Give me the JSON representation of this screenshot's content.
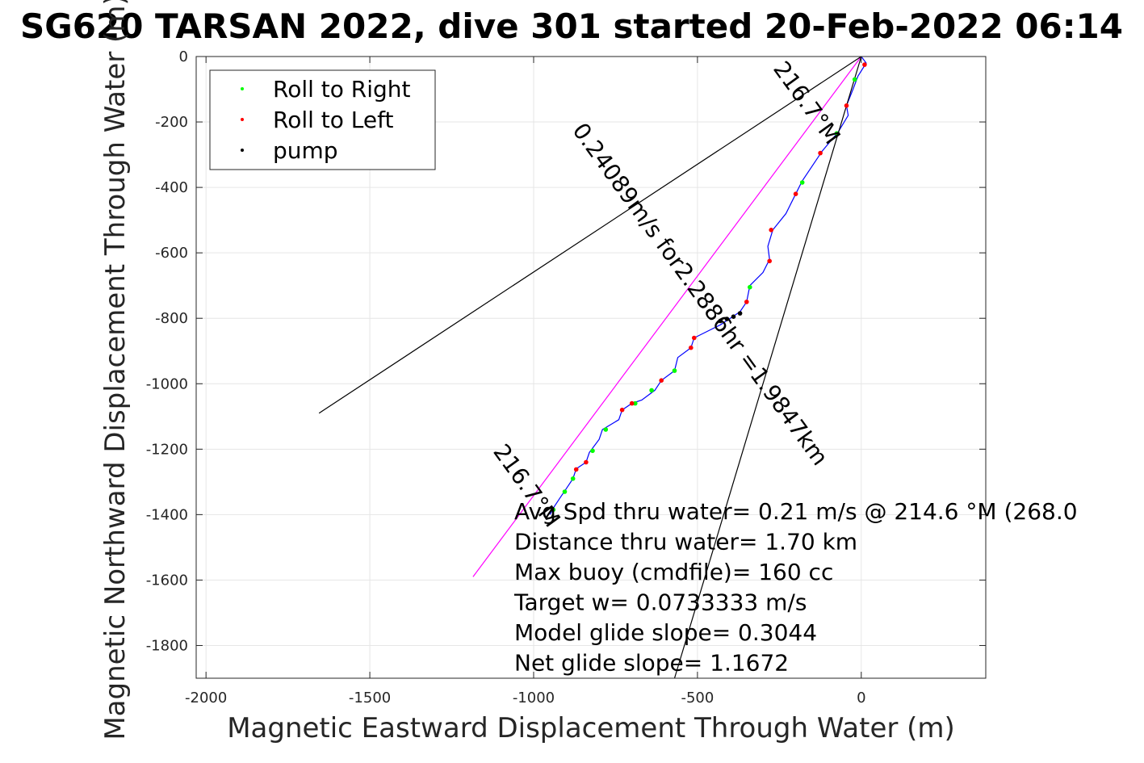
{
  "chart_data": {
    "type": "line",
    "title": "SG620 TARSAN 2022, dive 301 started 20-Feb-2022 06:14",
    "xlabel": "Magnetic Eastward Displacement Through Water (m)",
    "ylabel": "Magnetic Northward Displacement Through Water (m)",
    "xlim": [
      -2030,
      380
    ],
    "ylim": [
      -1900,
      0
    ],
    "xticks": [
      -2000,
      -1500,
      -1000,
      -500,
      0
    ],
    "yticks": [
      0,
      -200,
      -400,
      -600,
      -800,
      -1000,
      -1200,
      -1400,
      -1600,
      -1800
    ],
    "grid": true,
    "legend_position": "top-left",
    "legend": [
      {
        "label": "Roll to Right",
        "color": "#00ff00"
      },
      {
        "label": "Roll to Left",
        "color": "#ff0000"
      },
      {
        "label": "pump",
        "color": "#000000"
      }
    ],
    "series": [
      {
        "name": "track",
        "color": "#0000ff",
        "points": [
          [
            0,
            0
          ],
          [
            15,
            -20
          ],
          [
            -10,
            -60
          ],
          [
            -25,
            -100
          ],
          [
            -45,
            -150
          ],
          [
            -40,
            -180
          ],
          [
            -70,
            -230
          ],
          [
            -120,
            -290
          ],
          [
            -140,
            -320
          ],
          [
            -180,
            -380
          ],
          [
            -200,
            -420
          ],
          [
            -230,
            -480
          ],
          [
            -270,
            -530
          ],
          [
            -285,
            -580
          ],
          [
            -280,
            -620
          ],
          [
            -300,
            -660
          ],
          [
            -340,
            -700
          ],
          [
            -350,
            -750
          ],
          [
            -370,
            -780
          ],
          [
            -400,
            -800
          ],
          [
            -430,
            -820
          ],
          [
            -470,
            -840
          ],
          [
            -510,
            -860
          ],
          [
            -520,
            -890
          ],
          [
            -560,
            -920
          ],
          [
            -570,
            -960
          ],
          [
            -610,
            -990
          ],
          [
            -630,
            -1020
          ],
          [
            -670,
            -1050
          ],
          [
            -700,
            -1060
          ],
          [
            -730,
            -1080
          ],
          [
            -740,
            -1110
          ],
          [
            -790,
            -1140
          ],
          [
            -800,
            -1170
          ],
          [
            -830,
            -1210
          ],
          [
            -840,
            -1240
          ],
          [
            -870,
            -1260
          ],
          [
            -880,
            -1290
          ],
          [
            -900,
            -1320
          ],
          [
            -920,
            -1350
          ],
          [
            -940,
            -1380
          ],
          [
            -950,
            -1400
          ]
        ]
      },
      {
        "name": "heading line",
        "color": "#ff00ff",
        "points": [
          [
            0,
            0
          ],
          [
            -1185,
            -1590
          ]
        ]
      },
      {
        "name": "bound line 1",
        "color": "#000000",
        "points": [
          [
            0,
            0
          ],
          [
            -1655,
            -1090
          ]
        ]
      },
      {
        "name": "bound line 2",
        "color": "#000000",
        "points": [
          [
            0,
            0
          ],
          [
            -570,
            -1900
          ]
        ]
      }
    ],
    "markers": [
      {
        "type": "right",
        "color": "#00ff00",
        "points": [
          [
            -20,
            -70
          ],
          [
            -75,
            -235
          ],
          [
            -180,
            -385
          ],
          [
            -340,
            -705
          ],
          [
            -570,
            -960
          ],
          [
            -640,
            -1020
          ],
          [
            -690,
            -1060
          ],
          [
            -780,
            -1140
          ],
          [
            -820,
            -1205
          ],
          [
            -880,
            -1290
          ],
          [
            -905,
            -1330
          ],
          [
            -940,
            -1385
          ]
        ]
      },
      {
        "type": "left",
        "color": "#ff0000",
        "points": [
          [
            10,
            -25
          ],
          [
            -45,
            -150
          ],
          [
            -125,
            -295
          ],
          [
            -200,
            -420
          ],
          [
            -275,
            -530
          ],
          [
            -280,
            -625
          ],
          [
            -350,
            -750
          ],
          [
            -510,
            -860
          ],
          [
            -520,
            -890
          ],
          [
            -610,
            -990
          ],
          [
            -700,
            -1060
          ],
          [
            -730,
            -1080
          ],
          [
            -840,
            -1240
          ],
          [
            -870,
            -1262
          ]
        ]
      },
      {
        "type": "pump",
        "color": "#000000",
        "points": [
          [
            -370,
            -785
          ],
          [
            -390,
            -795
          ],
          [
            -410,
            -802
          ],
          [
            -430,
            -808
          ]
        ]
      }
    ],
    "annotations": [
      {
        "text": "216.7°M",
        "rotate": 54,
        "anchor": [
          -185,
          -155
        ]
      },
      {
        "text": "0.24089m/s for2.2886hr =1.9847km",
        "rotate": 54,
        "anchor": [
          -510,
          -740
        ]
      },
      {
        "text": "216.7°M",
        "rotate": 54,
        "anchor": [
          -1040,
          -1325
        ]
      }
    ],
    "stats": [
      "Avg Spd thru water=  0.21 m/s @ 214.6 °M (268.0",
      "Distance thru water=  1.70 km",
      "Max buoy (cmdfile)= 160 cc",
      "Target w= 0.0733333 m/s",
      "Model glide slope= 0.3044",
      "Net glide slope= 1.1672"
    ]
  }
}
